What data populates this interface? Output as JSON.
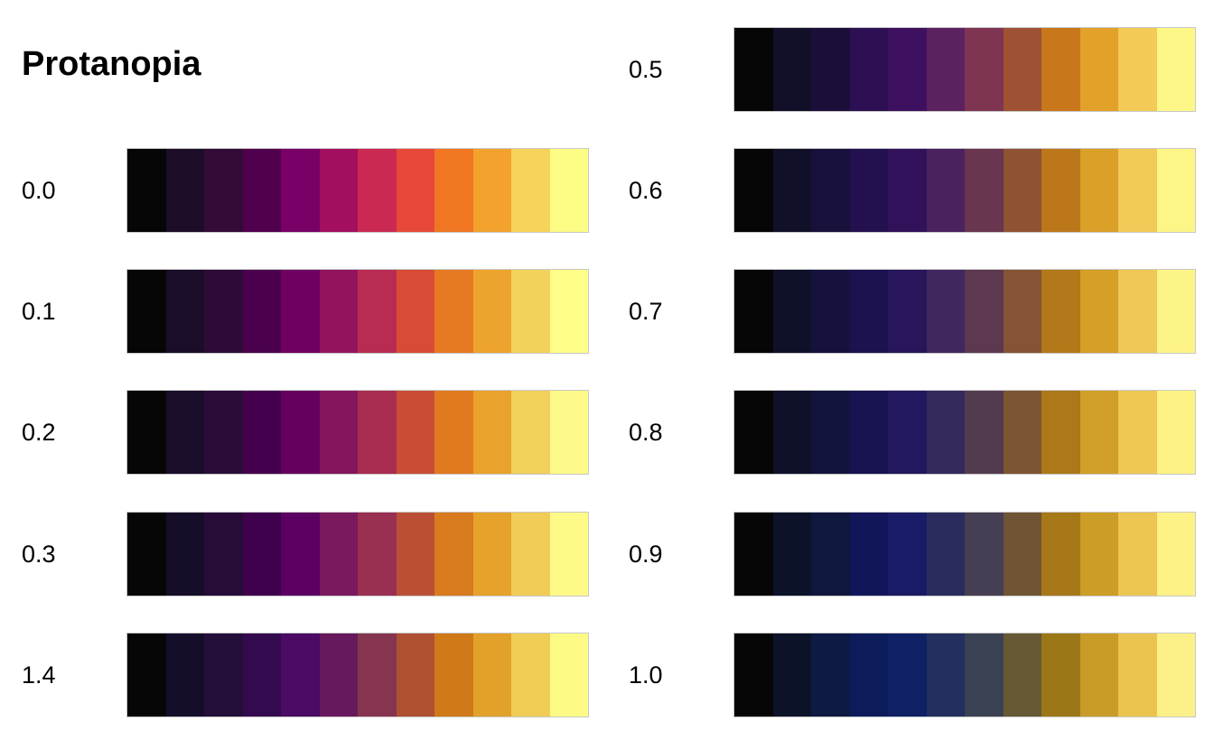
{
  "title": "Protanopia",
  "panels": [
    {
      "label": "0.0",
      "colors": [
        "#060606",
        "#1c0d29",
        "#320b36",
        "#51004d",
        "#780066",
        "#a30e5e",
        "#ca2952",
        "#e8483a",
        "#f07622",
        "#f3a22e",
        "#f6d35a",
        "#fdfd86"
      ]
    },
    {
      "label": "0.1",
      "colors": [
        "#060606",
        "#190d29",
        "#2e0b37",
        "#4b004d",
        "#6f0062",
        "#93145d",
        "#b82b52",
        "#d84c36",
        "#e67a22",
        "#eda42e",
        "#f2d25c",
        "#fdfd88"
      ]
    },
    {
      "label": "0.2",
      "colors": [
        "#060606",
        "#190d29",
        "#2b0c38",
        "#44004c",
        "#65005f",
        "#84165c",
        "#a82c4f",
        "#c84d34",
        "#e17a1e",
        "#e9a22b",
        "#f1d05b",
        "#fdfa89"
      ]
    },
    {
      "label": "0.3",
      "colors": [
        "#060606",
        "#160d29",
        "#270c38",
        "#3f004e",
        "#5b0062",
        "#7a195e",
        "#992f51",
        "#bb4f36",
        "#d87a1e",
        "#e6a22a",
        "#f1cd57",
        "#fdfa88"
      ]
    },
    {
      "label": "1.4",
      "colors": [
        "#060606",
        "#150e2a",
        "#240e3a",
        "#340a4f",
        "#4b0a63",
        "#66195d",
        "#853550",
        "#ae5032",
        "#cf7919",
        "#e2a128",
        "#f0cd55",
        "#fdfa86"
      ]
    },
    {
      "label": "0.5",
      "colors": [
        "#060606",
        "#121029",
        "#1b0f3a",
        "#2d0f53",
        "#3e1060",
        "#5c2260",
        "#7f3451",
        "#9f5233",
        "#c8781b",
        "#e2a22a",
        "#f2ca55",
        "#fdf788"
      ]
    },
    {
      "label": "0.6",
      "colors": [
        "#060606",
        "#101129",
        "#18113b",
        "#23104f",
        "#31125a",
        "#4b2260",
        "#6a354f",
        "#8f5233",
        "#bc771a",
        "#daa028",
        "#f1c956",
        "#fdf686"
      ]
    },
    {
      "label": "0.7",
      "colors": [
        "#060606",
        "#0f1129",
        "#15133d",
        "#1c1250",
        "#28155a",
        "#40285f",
        "#5c394f",
        "#855434",
        "#b37819",
        "#d59f28",
        "#efc857",
        "#fdf487"
      ]
    },
    {
      "label": "0.8",
      "colors": [
        "#060606",
        "#0e1129",
        "#12143d",
        "#171451",
        "#21185f",
        "#352a5d",
        "#533b4f",
        "#7c5533",
        "#ad7818",
        "#d19f27",
        "#eec755",
        "#fdf384"
      ]
    },
    {
      "label": "0.9",
      "colors": [
        "#060606",
        "#0c1228",
        "#0f173d",
        "#11165a",
        "#1a1b66",
        "#2b2c5e",
        "#463e52",
        "#6f5535",
        "#a77818",
        "#cd9e27",
        "#ecc553",
        "#fcf286"
      ]
    },
    {
      "label": "1.0",
      "colors": [
        "#060606",
        "#0c1228",
        "#0d1a43",
        "#0c1b5a",
        "#102064",
        "#222f5f",
        "#3a4152",
        "#675935",
        "#9b7718",
        "#c99c27",
        "#ebc450",
        "#fcf188"
      ]
    }
  ]
}
